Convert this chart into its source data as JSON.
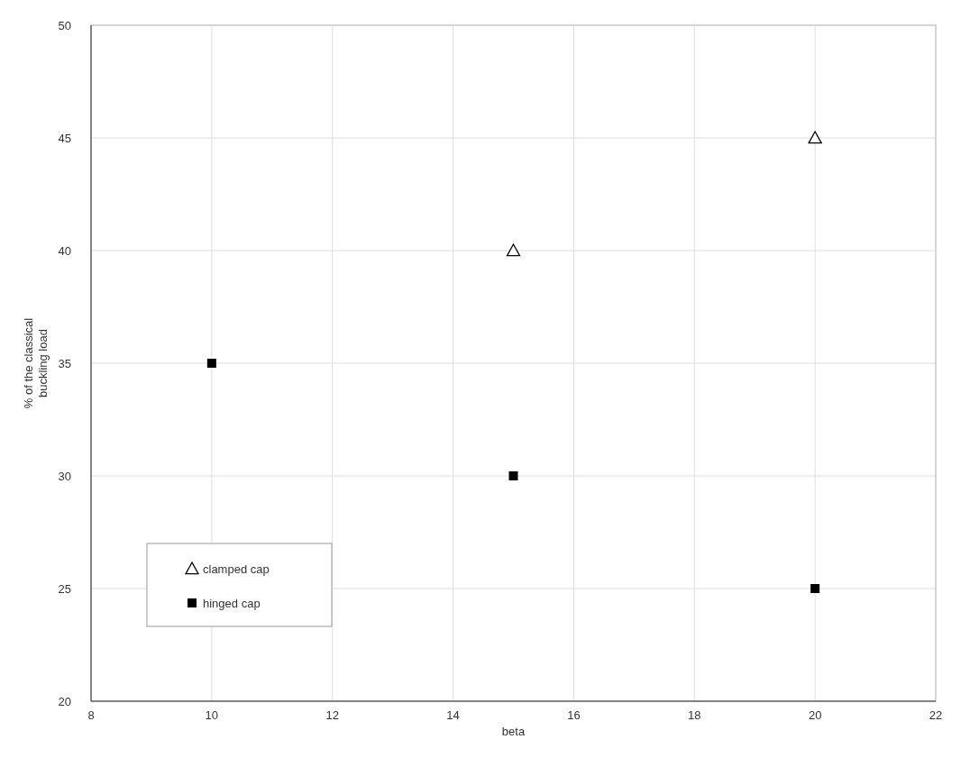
{
  "chart_data": {
    "type": "scatter",
    "xlabel": "beta",
    "ylabel": "% of the classical\nbuckling load",
    "xlim": [
      8,
      22
    ],
    "xticks": [
      8,
      10,
      12,
      14,
      16,
      18,
      20,
      22
    ],
    "ylim": [
      20,
      50
    ],
    "yticks": [
      20,
      25,
      30,
      35,
      40,
      45,
      50
    ],
    "grid": true,
    "legend": "left",
    "series": [
      {
        "name": "clamped cap",
        "color": "#000000",
        "marker": "triangle",
        "x": [
          15,
          20
        ],
        "values": [
          40,
          45
        ]
      },
      {
        "name": "hinged cap",
        "color": "#000000",
        "marker": "square",
        "x": [
          10,
          15,
          20
        ],
        "values": [
          35,
          30,
          25
        ]
      }
    ]
  }
}
